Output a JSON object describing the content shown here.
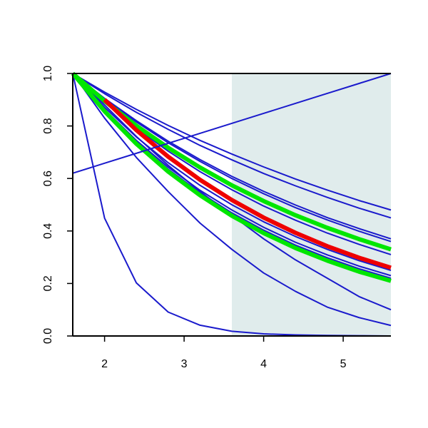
{
  "chart_data": {
    "type": "line",
    "x": [
      1.6,
      2.0,
      2.4,
      2.8,
      3.2,
      3.6,
      4.0,
      4.4,
      4.8,
      5.2,
      5.6
    ],
    "xlim": [
      1.6,
      5.6
    ],
    "ylim": [
      0,
      1
    ],
    "xticks": [
      2,
      3,
      4,
      5
    ],
    "yticks": [
      {
        "value": 0,
        "label": "0.0"
      },
      {
        "value": 0.2,
        "label": "0.2"
      },
      {
        "value": 0.4,
        "label": "0.4"
      },
      {
        "value": 0.6,
        "label": "0.6"
      },
      {
        "value": 0.8,
        "label": "0.8"
      },
      {
        "value": 1,
        "label": "1.0"
      }
    ],
    "shaded_region": {
      "xlim": [
        3.6,
        5.6
      ],
      "color": "#e0ecec"
    },
    "series": [
      {
        "color": "#1a1acc",
        "width": 2,
        "values": [
          1,
          0.449,
          0.202,
          0.091,
          0.041,
          0.018,
          0.008,
          0.004,
          0.002,
          0.001,
          0.0
        ]
      },
      {
        "color": "#1a1acc",
        "width": 2,
        "values": [
          1,
          0.83,
          0.68,
          0.55,
          0.43,
          0.33,
          0.24,
          0.17,
          0.11,
          0.07,
          0.04
        ]
      },
      {
        "color": "#1a1acc",
        "width": 2,
        "values": [
          1,
          0.88,
          0.76,
          0.65,
          0.55,
          0.46,
          0.37,
          0.29,
          0.22,
          0.15,
          0.1
        ]
      },
      {
        "color": "#1a1acc",
        "width": 2,
        "values": [
          1,
          0.929,
          0.863,
          0.802,
          0.745,
          0.693,
          0.644,
          0.598,
          0.556,
          0.516,
          0.48
        ]
      },
      {
        "color": "#1a1acc",
        "width": 2,
        "values": [
          1,
          0.923,
          0.852,
          0.787,
          0.726,
          0.671,
          0.619,
          0.572,
          0.528,
          0.487,
          0.45
        ]
      },
      {
        "color": "#1a1acc",
        "width": 2,
        "values": [
          1,
          0.905,
          0.82,
          0.742,
          0.672,
          0.608,
          0.551,
          0.499,
          0.451,
          0.409,
          0.37
        ]
      },
      {
        "color": "#1a1acc",
        "width": 2,
        "values": [
          1,
          0.903,
          0.815,
          0.736,
          0.665,
          0.6,
          0.542,
          0.489,
          0.442,
          0.399,
          0.36
        ]
      },
      {
        "color": "#1a1acc",
        "width": 2,
        "values": [
          1,
          0.89,
          0.791,
          0.704,
          0.626,
          0.557,
          0.495,
          0.441,
          0.392,
          0.349,
          0.31
        ]
      },
      {
        "color": "#1a1acc",
        "width": 2,
        "values": [
          1,
          0.871,
          0.758,
          0.66,
          0.574,
          0.5,
          0.435,
          0.379,
          0.33,
          0.287,
          0.25
        ]
      },
      {
        "color": "#1a1acc",
        "width": 2,
        "values": [
          1,
          0.863,
          0.745,
          0.643,
          0.555,
          0.48,
          0.414,
          0.357,
          0.309,
          0.266,
          0.23
        ]
      },
      {
        "color": "#1a1acc",
        "width": 2,
        "values": [
          1,
          0.86,
          0.739,
          0.635,
          0.546,
          0.469,
          0.403,
          0.346,
          0.298,
          0.256,
          0.22
        ]
      },
      {
        "color": "#00e600",
        "width": 6,
        "values": [
          1,
          0.895,
          0.801,
          0.717,
          0.642,
          0.574,
          0.514,
          0.46,
          0.412,
          0.369,
          0.33
        ]
      },
      {
        "color": "#00e600",
        "width": 6,
        "values": [
          1,
          0.856,
          0.732,
          0.626,
          0.536,
          0.458,
          0.392,
          0.335,
          0.287,
          0.245,
          0.21
        ]
      },
      {
        "color": "#ee0000",
        "width": 6,
        "values": [
          null,
          0.9,
          0.784,
          0.683,
          0.595,
          0.518,
          0.451,
          0.393,
          0.342,
          0.298,
          0.26
        ]
      },
      {
        "color": "#1a1acc",
        "width": 2,
        "values": [
          0.62,
          0.658,
          0.696,
          0.734,
          0.772,
          0.81,
          0.848,
          0.886,
          0.924,
          0.962,
          1.0
        ]
      }
    ]
  }
}
